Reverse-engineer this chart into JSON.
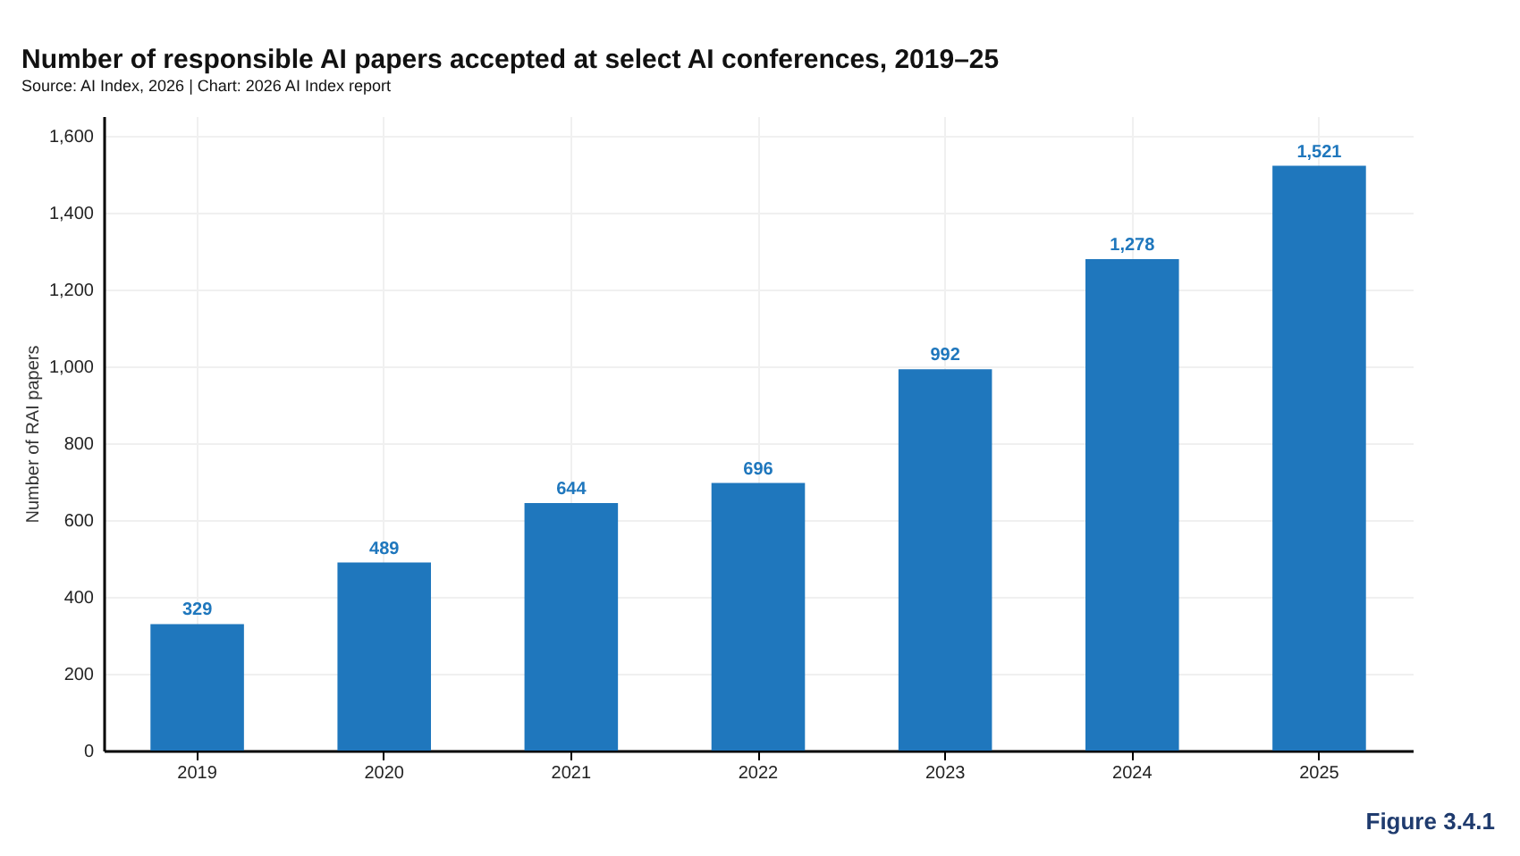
{
  "chart_data": {
    "type": "bar",
    "title": "Number of responsible AI papers accepted at select AI conferences, 2019–25",
    "subtitle": "Source: AI Index, 2026 | Chart: 2026 AI Index report",
    "ylabel": "Number of RAI papers",
    "categories": [
      "2019",
      "2020",
      "2021",
      "2022",
      "2023",
      "2024",
      "2025"
    ],
    "values": [
      329,
      489,
      644,
      696,
      992,
      1278,
      1521
    ],
    "value_labels": [
      "329",
      "489",
      "644",
      "696",
      "992",
      "1,278",
      "1,521"
    ],
    "color": "#1f77bd",
    "ylim": [
      0,
      1650
    ],
    "yticks": [
      0,
      {
        "value": 200,
        "label": "200"
      },
      {
        "value": 400,
        "label": "400"
      },
      {
        "value": 600,
        "label": "600"
      },
      {
        "value": 800,
        "label": "800"
      },
      {
        "value": 1000,
        "label": "1,000"
      },
      {
        "value": 1200,
        "label": "1,200"
      },
      {
        "value": 1400,
        "label": "1,400"
      },
      {
        "value": 1600,
        "label": "1,600"
      }
    ],
    "grid": true,
    "annotations": [
      "Figure 3.4.1"
    ]
  }
}
